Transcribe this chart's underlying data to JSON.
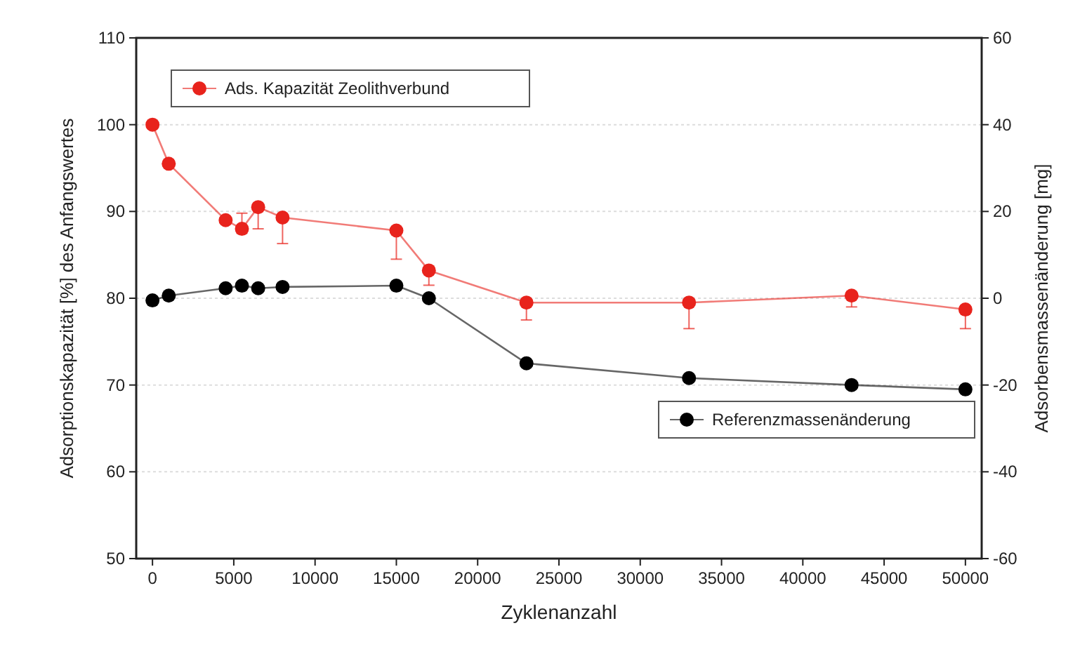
{
  "chart_data": {
    "type": "line",
    "xlabel": "Zyklenanzahl",
    "ylabel": "Adsorptionskapazität [%] des Anfangswertes",
    "y2label": "Adsorbensmassenänderung [mg]",
    "xlim": [
      -1000,
      51000
    ],
    "xticks": [
      0,
      5000,
      10000,
      15000,
      20000,
      25000,
      30000,
      35000,
      40000,
      45000,
      50000
    ],
    "ylim": [
      50,
      110
    ],
    "yticks": [
      50,
      60,
      70,
      80,
      90,
      100,
      110
    ],
    "y2lim": [
      -60,
      60
    ],
    "y2ticks": [
      -60,
      -40,
      -20,
      0,
      20,
      40,
      60
    ],
    "grid": "y",
    "legend": "top left",
    "marker": "circle",
    "line_style": "solid",
    "series": [
      {
        "name": "Ads. Kapazität Zeolithverbund",
        "color": "#e8231c",
        "x": [
          0,
          1000,
          4500,
          5500,
          6500,
          8000,
          15000,
          17000,
          23000,
          33000,
          43000,
          50000
        ],
        "values": [
          100,
          95.5,
          89,
          88,
          90.5,
          89.3,
          87.8,
          83.2,
          79.5,
          79.5,
          80.3,
          78.7
        ],
        "errors": [
          null,
          null,
          null,
          [
            87.5,
            89.8
          ],
          [
            88,
            90.5
          ],
          [
            86.3,
            89.3
          ],
          [
            84.5,
            87.8
          ],
          [
            81.5,
            83.2
          ],
          [
            77.5,
            79.5
          ],
          [
            76.5,
            79.5
          ],
          [
            79,
            80.3
          ],
          [
            76.5,
            78.7
          ]
        ]
      },
      {
        "name": "Referenzmassenänderung",
        "color": "#000000",
        "axis": "y2",
        "x": [
          0,
          1000,
          4500,
          5500,
          6500,
          8000,
          15000,
          17000,
          23000,
          33000,
          43000,
          50000
        ],
        "values": [
          -0.5,
          0.6,
          2.3,
          2.9,
          2.3,
          2.6,
          2.9,
          0,
          -15,
          -18.4,
          -20,
          -21
        ]
      }
    ]
  }
}
